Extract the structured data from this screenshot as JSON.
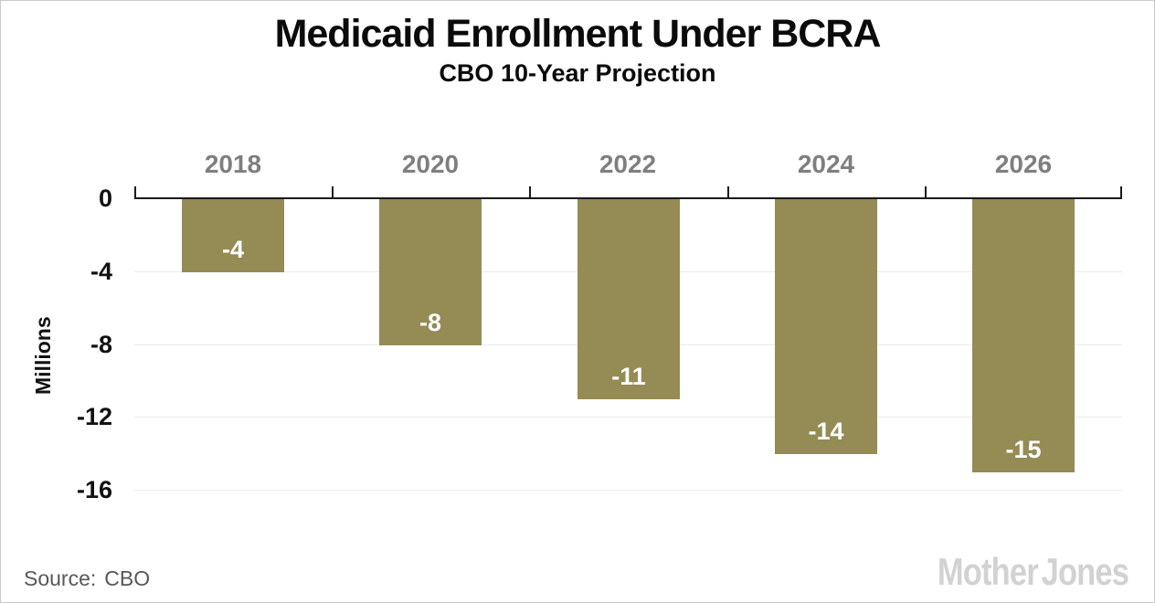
{
  "chart_data": {
    "type": "bar",
    "title": "Medicaid Enrollment Under BCRA",
    "subtitle": "CBO 10-Year Projection",
    "categories": [
      "2018",
      "2020",
      "2022",
      "2024",
      "2026"
    ],
    "values": [
      -4,
      -8,
      -11,
      -14,
      -15
    ],
    "value_labels": [
      "-4",
      "-8",
      "-11",
      "-14",
      "-15"
    ],
    "ylabel": "Millions",
    "yticks": [
      0,
      -4,
      -8,
      -12,
      -16
    ],
    "ytick_labels": [
      "0",
      "-4",
      "-8",
      "-12",
      "-16"
    ],
    "ylim": [
      -17,
      0
    ],
    "grid": "horizontal-only",
    "legend": "none",
    "bar_color": "#948B55",
    "value_label_color": "#ffffff"
  },
  "footer": {
    "source_label": "Source:",
    "source_value": "CBO",
    "brand": "Mother Jones"
  },
  "colors": {
    "title": "#0b0b0b",
    "category_label": "#7f7f7f",
    "axis": "#1a1a1a",
    "gridline": "#eaeaea",
    "ytick_label": "#111111",
    "source_text": "#585858",
    "brand_logo": "#d2d2d2",
    "frame_border": "#c9c9c9",
    "background": "#ffffff"
  }
}
